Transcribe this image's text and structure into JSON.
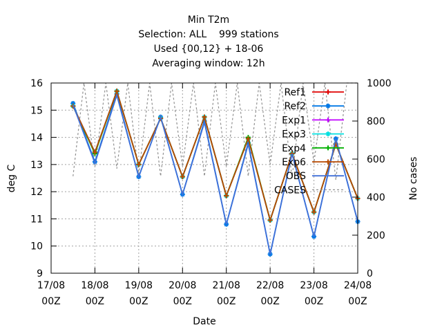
{
  "chart_data": {
    "type": "line",
    "title_lines": [
      "Min T2m",
      "Selection: ALL    999 stations",
      "Used {00,12} + 18-06",
      "Averaging window: 12h"
    ],
    "xlabel": "Date",
    "ylabel": "deg C",
    "y2label": "No cases",
    "x_ticks": [
      {
        "date": "17/08",
        "hour": "00Z"
      },
      {
        "date": "18/08",
        "hour": "00Z"
      },
      {
        "date": "19/08",
        "hour": "00Z"
      },
      {
        "date": "20/08",
        "hour": "00Z"
      },
      {
        "date": "21/08",
        "hour": "00Z"
      },
      {
        "date": "22/08",
        "hour": "00Z"
      },
      {
        "date": "23/08",
        "hour": "00Z"
      },
      {
        "date": "24/08",
        "hour": "00Z"
      }
    ],
    "xlim": [
      0,
      7
    ],
    "ylim": [
      9,
      16
    ],
    "y_ticks": [
      "9",
      "10",
      "11",
      "12",
      "13",
      "14",
      "15",
      "16"
    ],
    "y2lim": [
      0,
      1000
    ],
    "y2_ticks": [
      "0",
      "200",
      "400",
      "600",
      "800",
      "1000"
    ],
    "grid": true,
    "legend_position": "top-right",
    "x": [
      0.5,
      1.0,
      1.5,
      2.0,
      2.5,
      3.0,
      3.5,
      4.0,
      4.5,
      5.0,
      5.5,
      6.0,
      6.5,
      7.0
    ],
    "series": [
      {
        "name": "Ref1",
        "color": "#e00000",
        "marker": "plus",
        "values": [
          15.15,
          13.45,
          15.7,
          13.0,
          14.7,
          12.55,
          14.75,
          11.85,
          13.95,
          10.95,
          13.4,
          11.25,
          13.75,
          11.75
        ]
      },
      {
        "name": "Ref2",
        "color": "#0078e6",
        "marker": "star",
        "values": [
          15.25,
          13.1,
          15.6,
          12.55,
          14.75,
          11.9,
          14.6,
          10.8,
          13.8,
          9.7,
          13.4,
          10.35,
          13.95,
          10.9
        ]
      },
      {
        "name": "Exp1",
        "color": "#c000ff",
        "marker": "plus",
        "values": [
          15.15,
          13.45,
          15.7,
          13.0,
          14.7,
          12.55,
          14.75,
          11.85,
          13.95,
          10.95,
          13.4,
          11.25,
          13.75,
          11.75
        ]
      },
      {
        "name": "Exp3",
        "color": "#00e0e0",
        "marker": "star",
        "values": [
          15.15,
          13.45,
          15.7,
          13.0,
          14.7,
          12.55,
          14.75,
          11.85,
          13.95,
          10.95,
          13.4,
          11.25,
          13.75,
          11.75
        ]
      },
      {
        "name": "Exp4",
        "color": "#00b000",
        "marker": "plus",
        "values": [
          15.15,
          13.4,
          15.7,
          13.0,
          14.7,
          12.55,
          14.75,
          11.85,
          14.0,
          10.95,
          13.4,
          11.25,
          13.75,
          11.75
        ]
      },
      {
        "name": "Exp6",
        "color": "#b84a00",
        "marker": "plus",
        "values": [
          15.15,
          13.45,
          15.7,
          13.0,
          14.7,
          12.55,
          14.75,
          11.85,
          13.95,
          10.95,
          13.4,
          11.25,
          13.75,
          11.75
        ]
      },
      {
        "name": "OBS",
        "color": "#4070d8",
        "marker": "none",
        "values": [
          15.2,
          13.05,
          15.55,
          12.55,
          14.75,
          11.9,
          14.55,
          10.8,
          13.75,
          9.7,
          13.4,
          10.35,
          13.95,
          10.9
        ]
      }
    ],
    "cases": {
      "name": "CASES",
      "color": "#909090",
      "axis": "right",
      "x": [
        0.5,
        0.75,
        1.0,
        1.25,
        1.5,
        1.75,
        2.0,
        2.25,
        2.5,
        2.75,
        3.0,
        3.25,
        3.5,
        3.75,
        4.0,
        4.25,
        4.5,
        4.75,
        5.0,
        5.25,
        5.5,
        5.75,
        6.0,
        6.25,
        6.5,
        6.75,
        7.0
      ],
      "values": [
        510,
        1000,
        560,
        1000,
        550,
        1000,
        520,
        1000,
        510,
        1000,
        560,
        1000,
        510,
        1000,
        560,
        1000,
        510,
        1000,
        570,
        1000,
        500,
        1000,
        580,
        1000,
        490,
        1000,
        1000
      ]
    }
  }
}
